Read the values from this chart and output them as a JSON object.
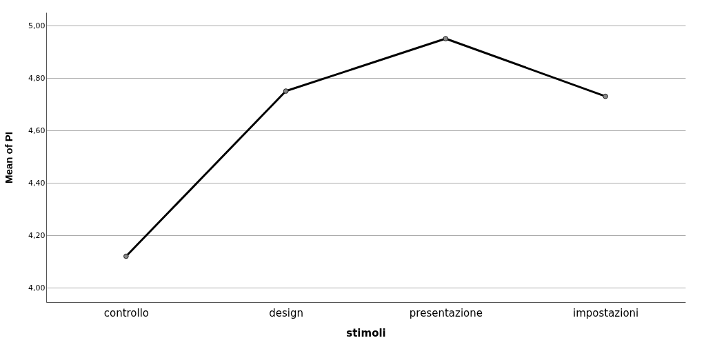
{
  "chart_data": {
    "type": "line",
    "xlabel": "stimoli",
    "ylabel": "Mean of PI",
    "categories": [
      "controllo",
      "design",
      "presentazione",
      "impostazioni"
    ],
    "series": [
      {
        "color": "#000000",
        "values": [
          4.12,
          4.75,
          4.95,
          4.73
        ]
      }
    ],
    "ylim": [
      3.945,
      5.05
    ],
    "yticks": [
      {
        "value": 4,
        "label": "4,00"
      },
      {
        "value": 4.2,
        "label": "4,20"
      },
      {
        "value": 4.4,
        "label": "4,40"
      },
      {
        "value": 4.6,
        "label": "4,60"
      },
      {
        "value": 4.8,
        "label": "4,80"
      },
      {
        "value": 5,
        "label": "5,00"
      }
    ],
    "grid": "y",
    "marker": "circle",
    "line_style": "solid"
  }
}
